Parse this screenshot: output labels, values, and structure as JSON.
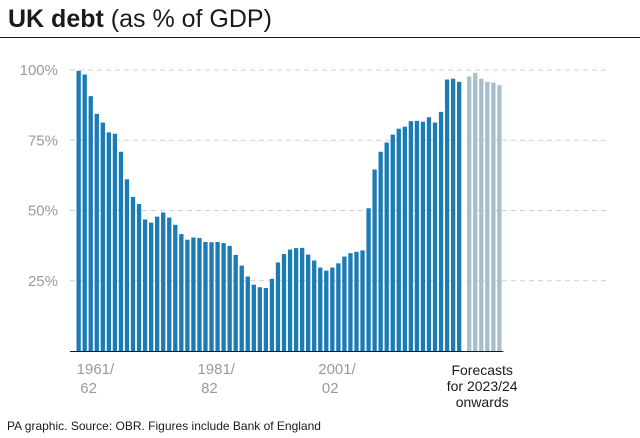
{
  "header": {
    "title_bold": "UK debt",
    "title_rest": "(as % of GDP)"
  },
  "footer": {
    "source": "PA graphic. Source: OBR. Figures include Bank of England"
  },
  "colors": {
    "actual": "#1a7bb5",
    "forecast": "#a7bfcc",
    "grid": "#cfcfcf",
    "axis": "#1a1a1a",
    "tick_text": "#9a9a9a"
  },
  "chart_data": {
    "type": "bar",
    "title": "UK debt (as % of GDP)",
    "xlabel": "",
    "ylabel": "",
    "ylim": [
      0,
      100
    ],
    "grid": true,
    "y_ticks": [
      "25%",
      "50%",
      "75%",
      "100%"
    ],
    "y_tick_values": [
      25,
      50,
      75,
      100
    ],
    "x_tick_labels": [
      {
        "line1": "1961/",
        "line2": "62",
        "category": "1961/62"
      },
      {
        "line1": "1981/",
        "line2": "82",
        "category": "1981/82"
      },
      {
        "line1": "2001/",
        "line2": "02",
        "category": "2001/02"
      }
    ],
    "annotation": [
      "Forecasts",
      "for 2023/24",
      "onwards"
    ],
    "series": [
      {
        "kind": "actual",
        "start_year": 1961,
        "values": [
          99.7,
          98.4,
          90.7,
          84.4,
          81.3,
          77.8,
          77.3,
          70.9,
          61.1,
          54.8,
          52.3,
          46.8,
          45.7,
          47.8,
          49.3,
          47.5,
          44.9,
          41.6,
          39.6,
          40.4,
          40.2,
          38.8,
          38.7,
          38.8,
          38.4,
          37.4,
          34.2,
          30.4,
          26.5,
          23.6,
          22.7,
          22.4,
          25.7,
          31.5,
          34.5,
          36.1,
          36.6,
          36.7,
          34.3,
          32.2,
          29.7,
          28.6,
          29.7,
          31.2,
          33.6,
          34.8,
          35.3,
          35.8,
          50.8,
          64.6,
          70.9,
          74.2,
          77.0,
          79.1,
          79.8,
          81.8,
          81.9,
          81.6,
          83.2,
          81.3,
          85.1,
          96.6,
          96.9,
          95.8
        ]
      },
      {
        "kind": "forecast",
        "start_year": 2023,
        "values": [
          97.7,
          99.0,
          96.9,
          95.8,
          95.5,
          94.6
        ]
      }
    ]
  }
}
